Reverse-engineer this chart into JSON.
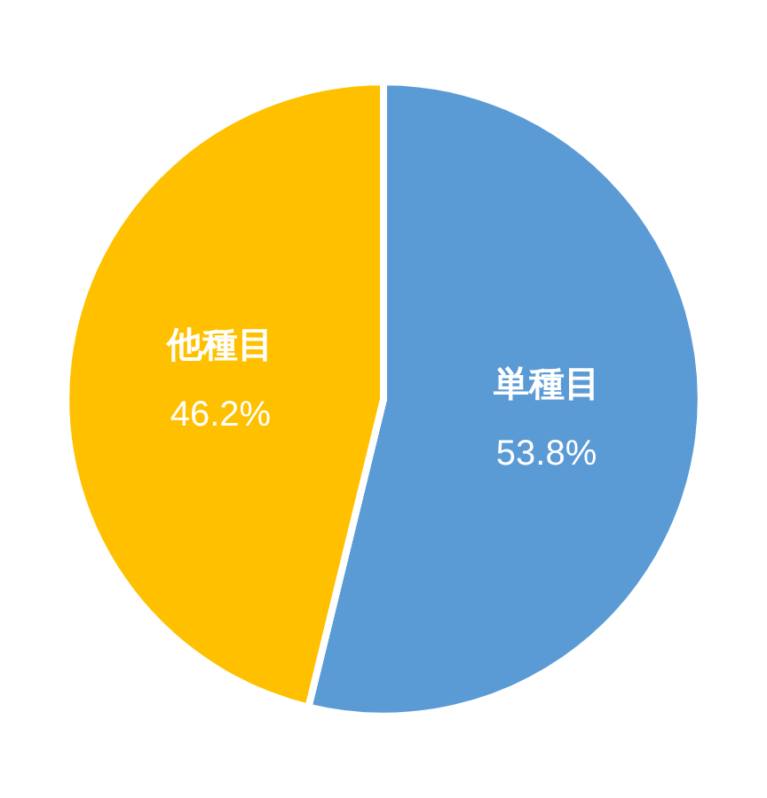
{
  "chart_data": {
    "type": "pie",
    "categories": [
      "単種目",
      "他種目"
    ],
    "values": [
      53.8,
      46.2
    ],
    "colors": [
      "#5b9bd5",
      "#ffc000"
    ],
    "value_labels": [
      "53.8%",
      "46.2%"
    ],
    "legend": false
  }
}
